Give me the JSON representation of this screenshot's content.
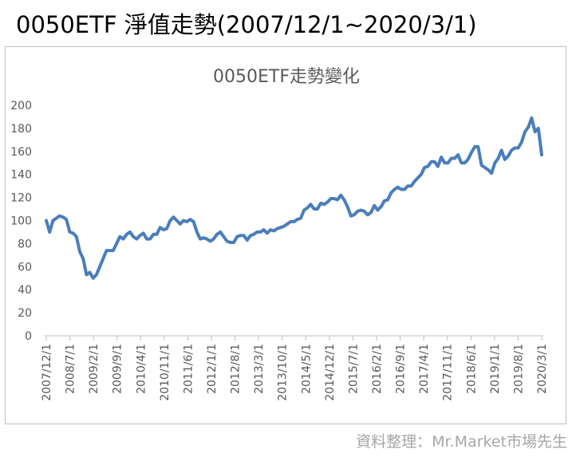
{
  "header": {
    "title": "0050ETF 淨值走勢(2007/12/1~2020/3/1)"
  },
  "footer": {
    "credit": "資料整理：Mr.Market市場先生"
  },
  "chart_data": {
    "type": "line",
    "title": "0050ETF走勢變化",
    "xlabel": "",
    "ylabel": "",
    "ylim": [
      0,
      200
    ],
    "yticks": [
      0,
      20,
      40,
      60,
      80,
      100,
      120,
      140,
      160,
      180,
      200
    ],
    "grid": false,
    "legend": "none",
    "line_color": "#4a7ebb",
    "x_tick_labels": [
      "2007/12/1",
      "2008/7/1",
      "2009/2/1",
      "2009/9/1",
      "2010/4/1",
      "2010/11/1",
      "2011/6/1",
      "2012/1/1",
      "2012/8/1",
      "2013/3/1",
      "2013/10/1",
      "2014/5/1",
      "2014/12/1",
      "2015/7/1",
      "2016/2/1",
      "2016/9/1",
      "2017/4/1",
      "2017/11/1",
      "2018/6/1",
      "2019/1/1",
      "2019/8/1",
      "2020/3/1"
    ],
    "series": [
      {
        "values": [
          100,
          90,
          100,
          102,
          104,
          103,
          101,
          90,
          89,
          86,
          73,
          67,
          53,
          55,
          50,
          53,
          60,
          67,
          74,
          74,
          74,
          80,
          86,
          84,
          88,
          90,
          86,
          84,
          87,
          89,
          84,
          84,
          88,
          88,
          94,
          92,
          93,
          100,
          103,
          100,
          97,
          100,
          99,
          101,
          99,
          90,
          84,
          85,
          84,
          82,
          84,
          88,
          90,
          86,
          82,
          81,
          81,
          86,
          87,
          87,
          83,
          87,
          88,
          90,
          90,
          92,
          89,
          92,
          91,
          93,
          94,
          95,
          97,
          99,
          99,
          101,
          102,
          109,
          111,
          114,
          110,
          110,
          115,
          114,
          116,
          119,
          119,
          118,
          122,
          118,
          112,
          104,
          105,
          108,
          109,
          108,
          105,
          107,
          113,
          109,
          112,
          117,
          118,
          124,
          127,
          129,
          127,
          127,
          130,
          130,
          134,
          137,
          140,
          146,
          147,
          151,
          151,
          147,
          155,
          150,
          150,
          154,
          154,
          157,
          150,
          150,
          153,
          159,
          164,
          164,
          148,
          146,
          144,
          141,
          150,
          154,
          161,
          153,
          156,
          161,
          163,
          163,
          168,
          177,
          181,
          189,
          177,
          180,
          157
        ]
      }
    ]
  }
}
